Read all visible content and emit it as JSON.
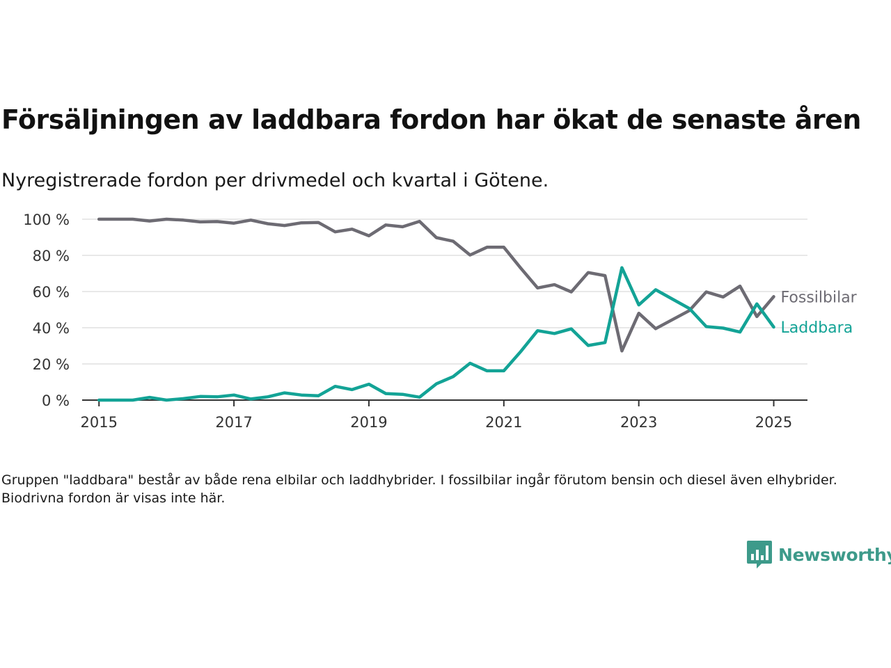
{
  "title": "Försäljningen av laddbara fordon har ökat de senaste åren",
  "subtitle": "Nyregistrerade fordon per drivmedel och kvartal i Götene.",
  "note": "Gruppen \"laddbara\" består av både rena elbilar och laddhybrider. I fossilbilar ingår förutom bensin och diesel även elhybrider. Biodrivna fordon är visas inte här.",
  "brand": {
    "name": "Newsworthy",
    "color": "#3d9a8a",
    "icon": "bar-chart-speech-bubble-icon"
  },
  "chart_data": {
    "type": "line",
    "title": "Försäljningen av laddbara fordon har ökat de senaste åren",
    "subtitle": "Nyregistrerade fordon per drivmedel och kvartal i Götene.",
    "xlabel": "",
    "ylabel": "",
    "xlim": [
      2014.75,
      2025.5
    ],
    "ylim": [
      0,
      100
    ],
    "x_ticks": [
      {
        "value": 2015,
        "label": "2015"
      },
      {
        "value": 2017,
        "label": "2017"
      },
      {
        "value": 2019,
        "label": "2019"
      },
      {
        "value": 2021,
        "label": "2021"
      },
      {
        "value": 2023,
        "label": "2023"
      },
      {
        "value": 2025,
        "label": "2025"
      }
    ],
    "y_ticks": [
      {
        "value": 0,
        "label": "0 %"
      },
      {
        "value": 20,
        "label": "20 %"
      },
      {
        "value": 40,
        "label": "40 %"
      },
      {
        "value": 60,
        "label": "60 %"
      },
      {
        "value": 80,
        "label": "80 %"
      },
      {
        "value": 100,
        "label": "100 %"
      }
    ],
    "grid": true,
    "legend": "direct labels at line ends (right)",
    "x": [
      2015.0,
      2015.25,
      2015.5,
      2015.75,
      2016.0,
      2016.25,
      2016.5,
      2016.75,
      2017.0,
      2017.25,
      2017.5,
      2017.75,
      2018.0,
      2018.25,
      2018.5,
      2018.75,
      2019.0,
      2019.25,
      2019.5,
      2019.75,
      2020.0,
      2020.25,
      2020.5,
      2020.75,
      2021.0,
      2021.25,
      2021.5,
      2021.75,
      2022.0,
      2022.25,
      2022.5,
      2022.75,
      2023.0,
      2023.25,
      2023.5,
      2023.75,
      2024.0,
      2024.25,
      2024.5,
      2024.75,
      2025.0
    ],
    "series": [
      {
        "name": "Fossilbilar",
        "color": "#6d6b73",
        "values": [
          100,
          100,
          100,
          99,
          100,
          99.5,
          98.5,
          98.7,
          97.8,
          99.5,
          97.5,
          96.5,
          98,
          98.2,
          93,
          94.5,
          90.8,
          96.8,
          95.8,
          98.8,
          89.8,
          87.8,
          80.2,
          84.5,
          84.5,
          73,
          62,
          63.8,
          59.8,
          70.5,
          68.8,
          27.2,
          48,
          39.5,
          44.5,
          49.5,
          59.8,
          57,
          63,
          46.2,
          57.2
        ]
      },
      {
        "name": "Laddbara",
        "color": "#13a396",
        "values": [
          0,
          0,
          0,
          1.5,
          0,
          0.8,
          2,
          1.8,
          2.8,
          0.6,
          1.8,
          4,
          2.8,
          2.4,
          7.6,
          5.8,
          8.8,
          3.6,
          3.2,
          1.6,
          9,
          13,
          20.4,
          16.2,
          16.2,
          26.8,
          38.4,
          36.8,
          39.4,
          30.2,
          31.8,
          73.2,
          52.6,
          61,
          55.8,
          50.6,
          40.6,
          39.8,
          37.6,
          53.2,
          40.4
        ]
      }
    ]
  }
}
